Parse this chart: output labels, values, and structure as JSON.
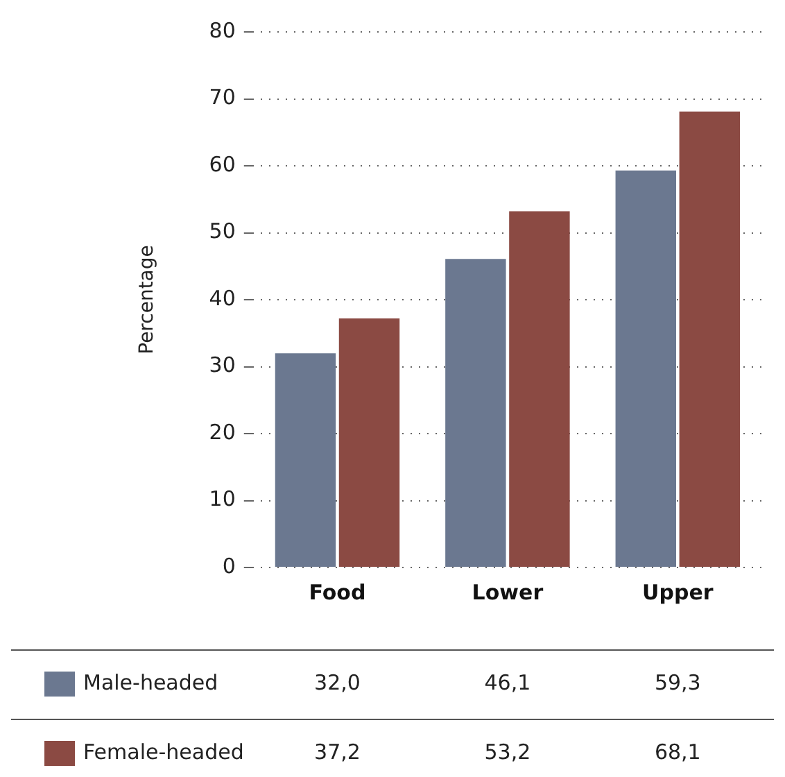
{
  "chart_data": {
    "type": "bar",
    "ylabel": "Percentage",
    "categories": [
      "Food",
      "Lower",
      "Upper"
    ],
    "series": [
      {
        "name": "Male-headed",
        "color": "#6b7890",
        "values": [
          32.0,
          46.1,
          59.3
        ],
        "value_labels": [
          "32,0",
          "46,1",
          "59,3"
        ]
      },
      {
        "name": "Female-headed",
        "color": "#8b4a43",
        "values": [
          37.2,
          53.2,
          68.1
        ],
        "value_labels": [
          "37,2",
          "53,2",
          "68,1"
        ]
      }
    ],
    "ylim": [
      0,
      80
    ],
    "yticks": [
      0,
      10,
      20,
      30,
      40,
      50,
      60,
      70,
      80
    ],
    "grid": "y",
    "legend": "bottom"
  }
}
